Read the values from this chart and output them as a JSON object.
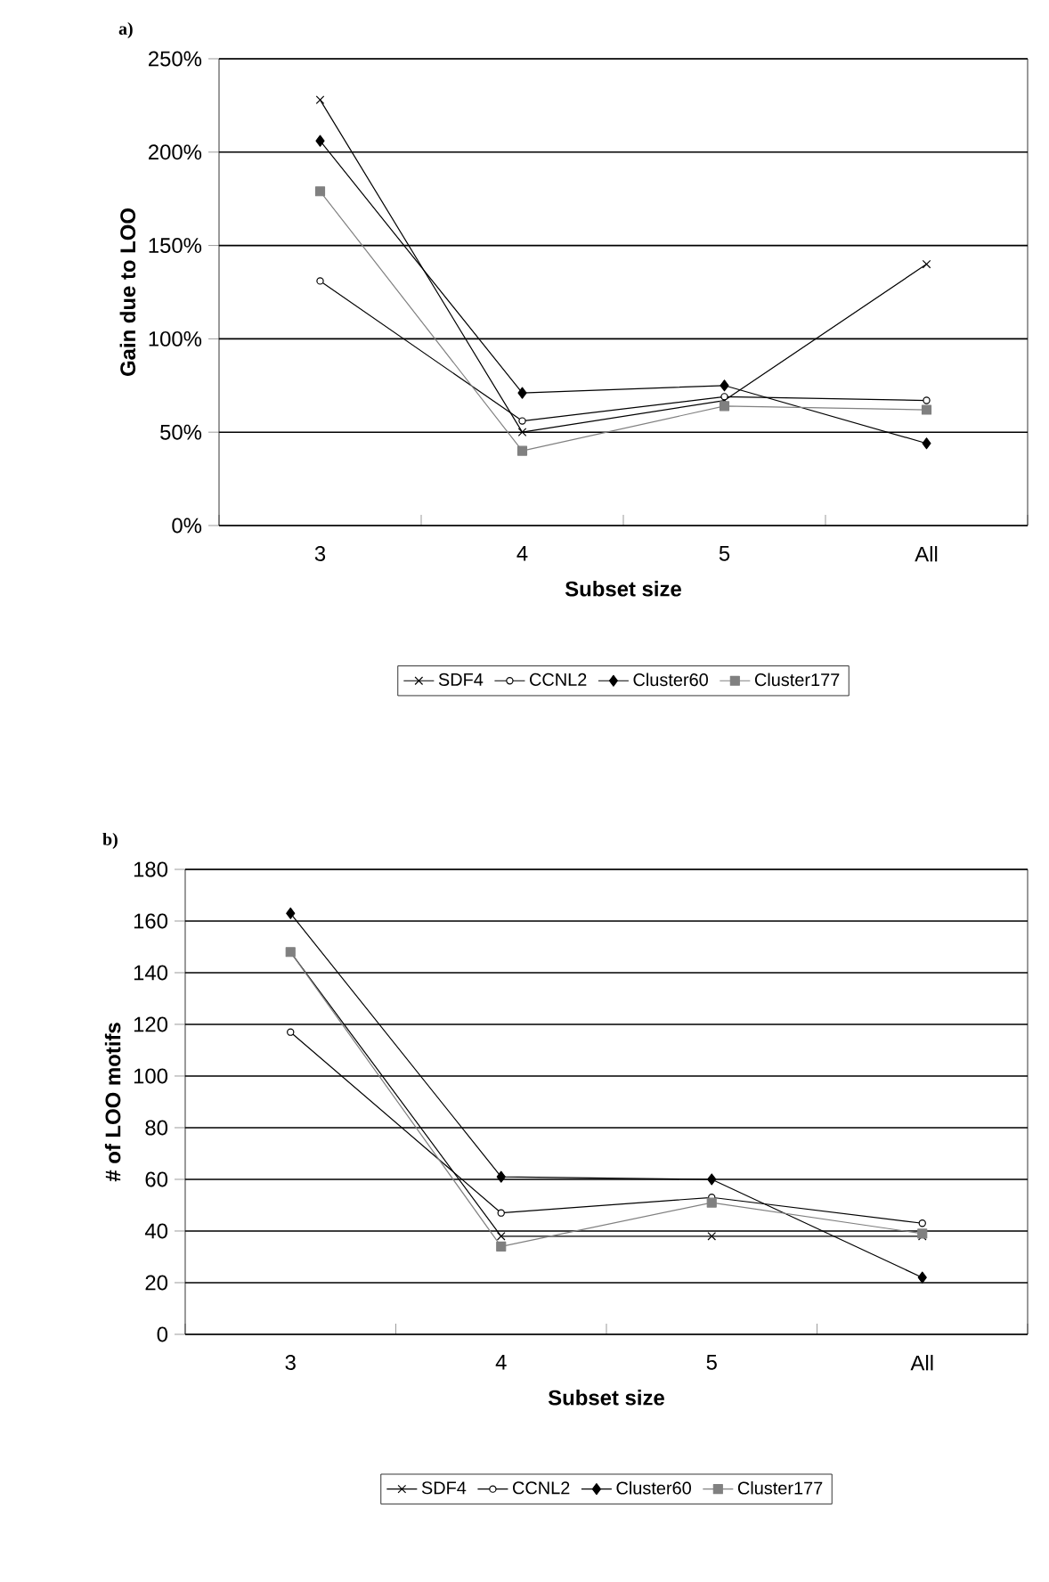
{
  "chart_data": [
    {
      "type": "line",
      "title": "a)",
      "xlabel": "Subset size",
      "ylabel": "Gain due to LOO",
      "categories": [
        "3",
        "4",
        "5",
        "All"
      ],
      "series": [
        {
          "name": "SDF4",
          "color": "#000000",
          "marker": "cross",
          "values": [
            228,
            50,
            67,
            140
          ]
        },
        {
          "name": "CCNL2",
          "color": "#000000",
          "marker": "circle",
          "values": [
            131,
            56,
            69,
            67
          ]
        },
        {
          "name": "Cluster60",
          "color": "#000000",
          "marker": "diamond",
          "values": [
            206,
            71,
            75,
            44
          ]
        },
        {
          "name": "Cluster177",
          "color": "#808080",
          "marker": "square",
          "values": [
            179,
            40,
            64,
            62
          ]
        }
      ],
      "ylim": [
        0,
        250
      ],
      "yticks": [
        {
          "value": 0,
          "label": "0%"
        },
        {
          "value": 50,
          "label": "50%"
        },
        {
          "value": 100,
          "label": "100%"
        },
        {
          "value": 150,
          "label": "150%"
        },
        {
          "value": 200,
          "label": "200%"
        },
        {
          "value": 250,
          "label": "250%"
        }
      ],
      "grid": "y",
      "legend": "bottom"
    },
    {
      "type": "line",
      "title": "b)",
      "xlabel": "Subset size",
      "ylabel": "# of LOO motifs",
      "categories": [
        "3",
        "4",
        "5",
        "All"
      ],
      "series": [
        {
          "name": "SDF4",
          "color": "#000000",
          "marker": "cross",
          "values": [
            148,
            38,
            38,
            38
          ]
        },
        {
          "name": "CCNL2",
          "color": "#000000",
          "marker": "circle",
          "values": [
            117,
            47,
            53,
            43
          ]
        },
        {
          "name": "Cluster60",
          "color": "#000000",
          "marker": "diamond",
          "values": [
            163,
            61,
            60,
            22
          ]
        },
        {
          "name": "Cluster177",
          "color": "#808080",
          "marker": "square",
          "values": [
            148,
            34,
            51,
            39
          ]
        }
      ],
      "ylim": [
        0,
        180
      ],
      "yticks": [
        0,
        20,
        40,
        60,
        80,
        100,
        120,
        140,
        160,
        180
      ],
      "grid": "y",
      "legend": "bottom"
    }
  ]
}
